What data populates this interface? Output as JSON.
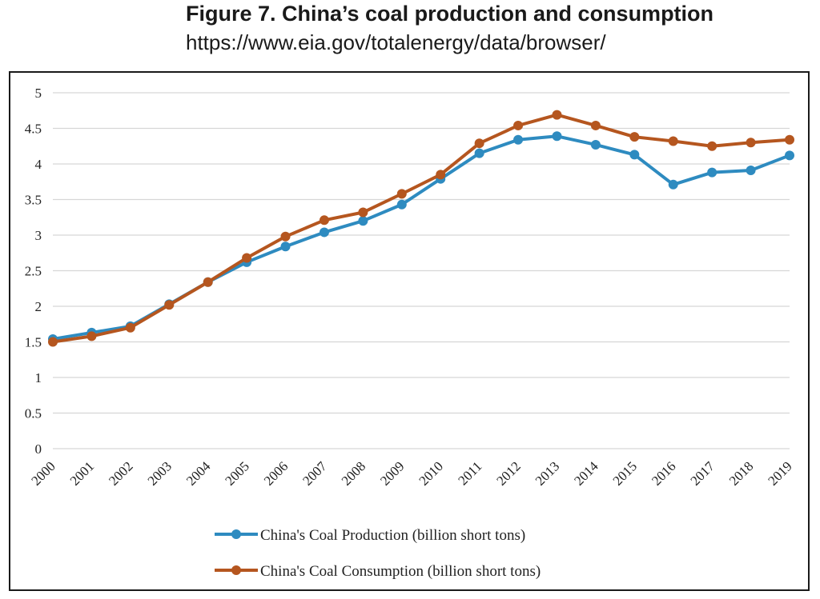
{
  "figure": {
    "title": "Figure 7. China’s coal production and consumption",
    "source_url": "https://www.eia.gov/totalenergy/data/browser/"
  },
  "chart_data": {
    "type": "line",
    "categories": [
      "2000",
      "2001",
      "2002",
      "2003",
      "2004",
      "2005",
      "2006",
      "2007",
      "2008",
      "2009",
      "2010",
      "2011",
      "2012",
      "2013",
      "2014",
      "2015",
      "2016",
      "2017",
      "2018",
      "2019"
    ],
    "series": [
      {
        "name": "China's Coal Production (billion short tons)",
        "color": "#2e8bc0",
        "values": [
          1.54,
          1.63,
          1.72,
          2.03,
          2.34,
          2.62,
          2.84,
          3.04,
          3.2,
          3.43,
          3.79,
          4.15,
          4.34,
          4.39,
          4.27,
          4.13,
          3.71,
          3.88,
          3.91,
          4.12
        ]
      },
      {
        "name": "China's Coal Consumption (billion short tons)",
        "color": "#b5561f",
        "values": [
          1.5,
          1.58,
          1.7,
          2.02,
          2.34,
          2.68,
          2.98,
          3.21,
          3.32,
          3.58,
          3.85,
          4.29,
          4.54,
          4.69,
          4.54,
          4.38,
          4.32,
          4.25,
          4.3,
          4.34
        ]
      }
    ],
    "yticks": [
      "0",
      "0.5",
      "1",
      "1.5",
      "2",
      "2.5",
      "3",
      "3.5",
      "4",
      "4.5",
      "5"
    ],
    "ylim": [
      0,
      5
    ],
    "grid": true,
    "legend": "bottom",
    "xlabel": "",
    "ylabel": ""
  }
}
